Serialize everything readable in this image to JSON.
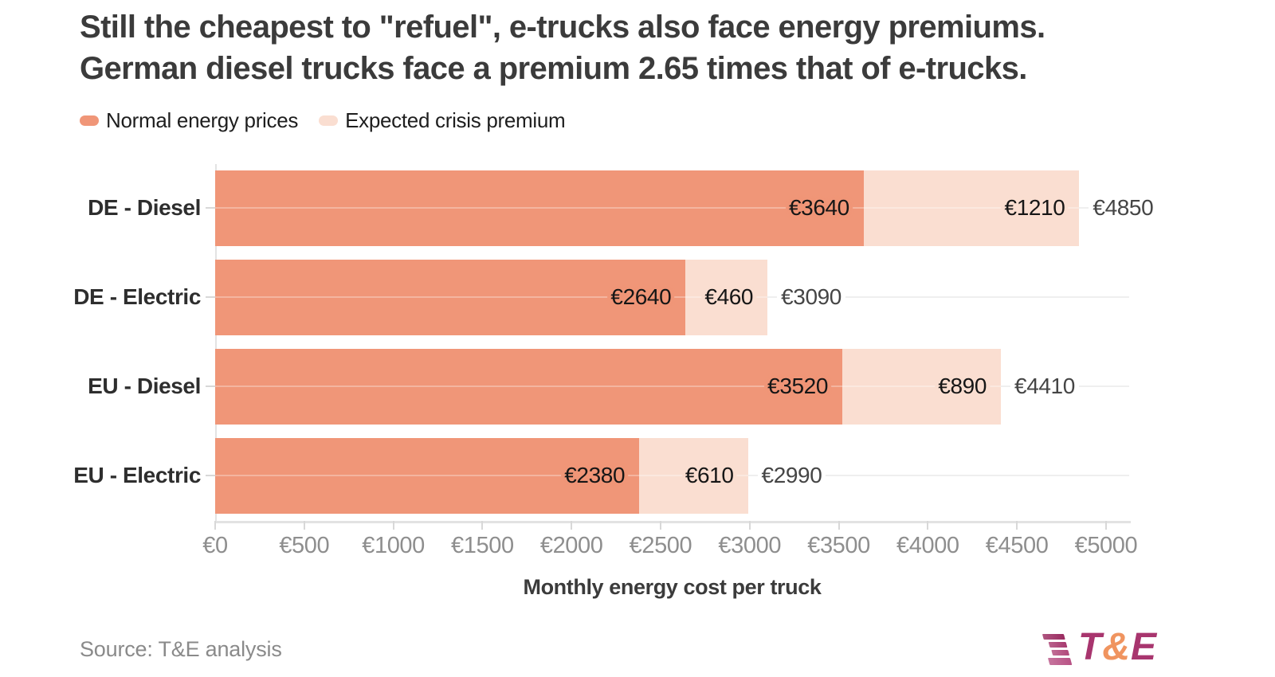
{
  "title": {
    "line1": "Still the cheapest to \"refuel\", e-trucks also face energy premiums.",
    "line2": "German diesel trucks face a premium 2.65 times that of e-trucks."
  },
  "legend": {
    "items": [
      {
        "label": "Normal energy prices",
        "color": "#F09678"
      },
      {
        "label": "Expected crisis premium",
        "color": "#FADED1"
      }
    ]
  },
  "chart_data": {
    "type": "bar",
    "orientation": "horizontal",
    "stacked": true,
    "title": "Still the cheapest to \"refuel\", e-trucks also face energy premiums. German diesel trucks face a premium 2.65 times that of e-trucks.",
    "categories": [
      "DE - Diesel",
      "DE - Electric",
      "EU - Diesel",
      "EU - Electric"
    ],
    "series": [
      {
        "name": "Normal energy prices",
        "color": "#F09678",
        "values": [
          3640,
          2640,
          3520,
          2380
        ]
      },
      {
        "name": "Expected crisis premium",
        "color": "#FADED1",
        "values": [
          1210,
          460,
          890,
          610
        ]
      }
    ],
    "totals": [
      4850,
      3090,
      4410,
      2990
    ],
    "currency_prefix": "€",
    "xlabel": "Monthly energy cost per truck",
    "x_ticks": [
      0,
      500,
      1000,
      1500,
      2000,
      2500,
      3000,
      3500,
      4000,
      4500,
      5000
    ],
    "axis_min": 0,
    "axis_max": 5130,
    "grid": "row-lines",
    "legend_position": "top-left"
  },
  "source": "Source: T&E analysis",
  "logo": {
    "letters": [
      {
        "char": "T",
        "color": "#A8356E"
      },
      {
        "char": "&",
        "color": "#F0945F"
      },
      {
        "char": "E",
        "color": "#A8356E"
      }
    ],
    "mark_colors": [
      "#9A2B60",
      "#A73A6F",
      "#B1497B",
      "#B85285"
    ]
  }
}
